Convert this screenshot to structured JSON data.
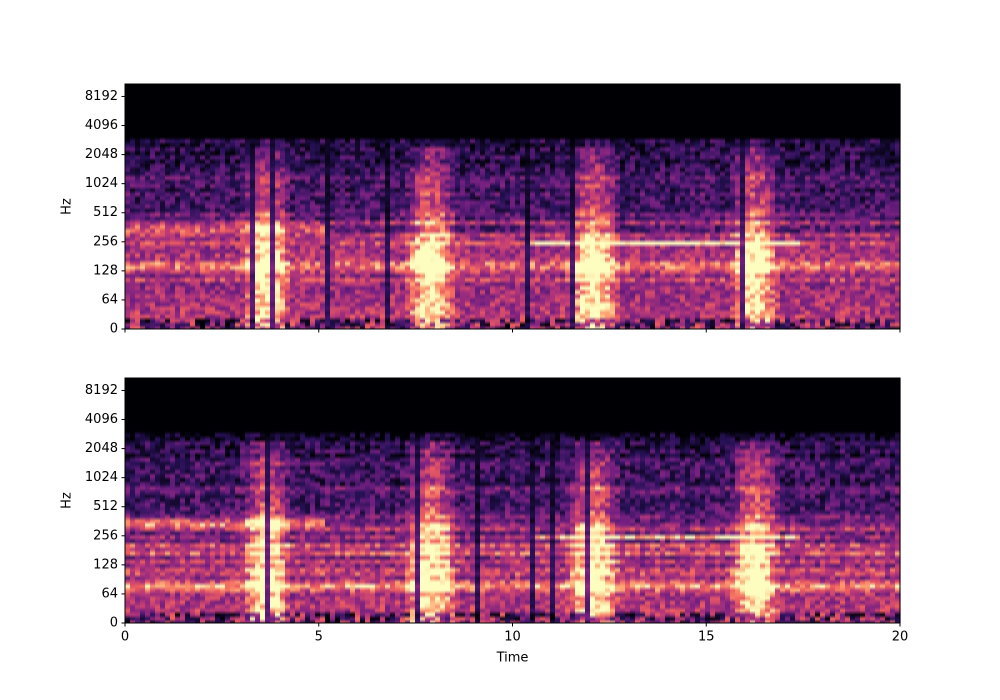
{
  "chart_data": [
    {
      "type": "spectrogram",
      "ylabel": "Hz",
      "y_scale": "symlog",
      "xlim": [
        0,
        20
      ],
      "xticks": [
        0,
        5,
        10,
        15,
        20
      ],
      "xtick_labels": false,
      "ylim": [
        0,
        11025
      ],
      "yticks": [
        0,
        64,
        128,
        256,
        512,
        1024,
        2048,
        4096,
        8192
      ],
      "colormap": "magma"
    },
    {
      "type": "spectrogram",
      "ylabel": "Hz",
      "xlabel": "Time",
      "y_scale": "symlog",
      "xlim": [
        0,
        20
      ],
      "xticks": [
        0,
        5,
        10,
        15,
        20
      ],
      "xtick_labels": true,
      "ylim": [
        0,
        11025
      ],
      "yticks": [
        0,
        64,
        128,
        256,
        512,
        1024,
        2048,
        4096,
        8192
      ],
      "colormap": "magma"
    }
  ]
}
